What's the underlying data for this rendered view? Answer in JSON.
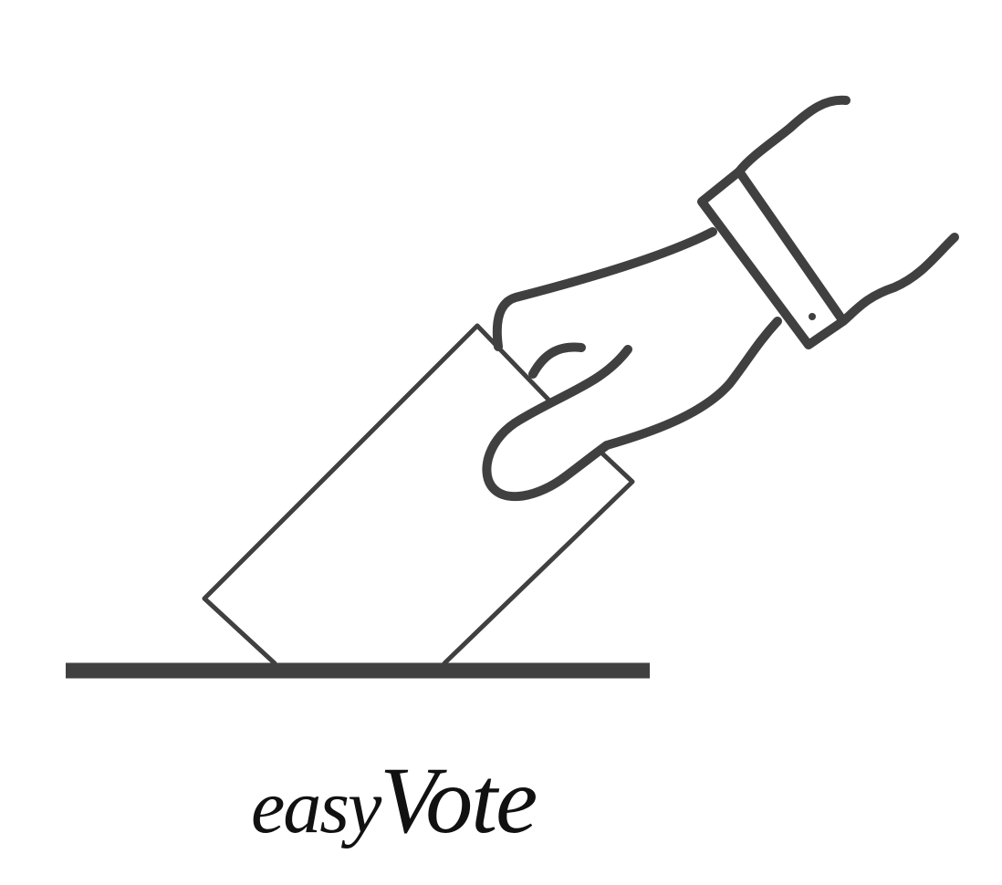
{
  "logo": {
    "wordmark_prefix": "easy",
    "wordmark_main": "Vote",
    "icon": "hand-casting-ballot-icon",
    "line_color": "#404040",
    "text_color": "#111111",
    "background": "#ffffff"
  }
}
